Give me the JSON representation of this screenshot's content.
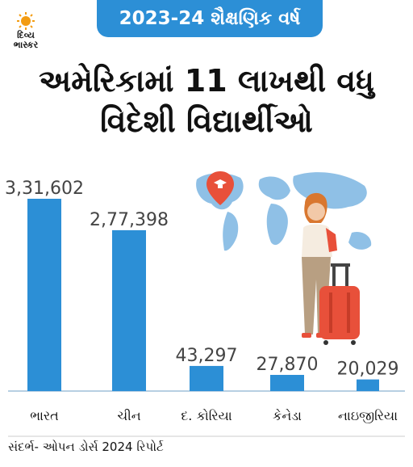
{
  "brand": {
    "line1": "દિવ્ય",
    "line2": "ભાસ્કર",
    "accent": "#f39c12"
  },
  "banner": {
    "text": "2023-24 શૈક્ષણિક વર્ષ",
    "color": "#2c8fd6"
  },
  "headline": {
    "line1": "અમેરિકામાં 11 લાખથી વધુ",
    "line2": "વિદેશી વિદ્યાર્થીઓ"
  },
  "source": "સંદર્ભ- ઓપન ડોર્સ 2024 રિપોર્ટ",
  "colors": {
    "bar": "#2c8fd6",
    "map": "#8fc0e6",
    "suitcase": "#e8503a"
  },
  "chart_data": {
    "type": "bar",
    "categories": [
      "ભારત",
      "ચીન",
      "દ. કોરિયા",
      "કેનેડા",
      "નાઇજીરિયા"
    ],
    "values": [
      331602,
      277398,
      43297,
      27870,
      20029
    ],
    "value_labels": [
      "3,31,602",
      "2,77,398",
      "43,297",
      "27,870",
      "20,029"
    ],
    "title": "",
    "xlabel": "",
    "ylabel": ""
  }
}
